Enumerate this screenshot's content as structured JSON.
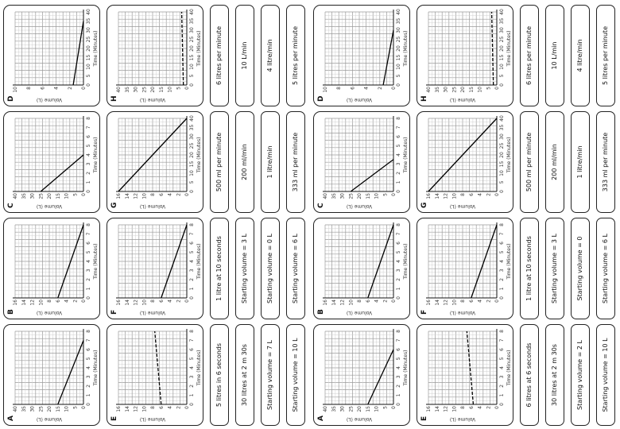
{
  "sheets": [
    {
      "graphs": [
        {
          "id": "A",
          "ymax": 40,
          "xmax": 8,
          "xlabel": "Time (Minutes)",
          "ylabel": "Volume (L)",
          "line": [
            [
              0,
              15
            ],
            [
              7,
              0
            ]
          ],
          "dashed": false
        },
        {
          "id": "B",
          "ymax": 16,
          "xmax": 8,
          "xlabel": "Time (Minutes)",
          "ylabel": "Volume (L)",
          "line": [
            [
              0,
              6
            ],
            [
              8,
              0
            ]
          ],
          "dashed": false
        },
        {
          "id": "C",
          "ymax": 40,
          "xmax": 8,
          "xlabel": "Time (Minutes)",
          "ylabel": "Volume (L)",
          "line": [
            [
              0,
              25
            ],
            [
              4,
              0
            ]
          ],
          "dashed": false
        },
        {
          "id": "D",
          "ymax": 10,
          "xmax": 40,
          "xlabel": "Time (Minutes)",
          "ylabel": "Volume (L)",
          "line": [
            [
              0,
              1.5
            ],
            [
              35,
              0
            ]
          ],
          "dashed": false
        },
        {
          "id": "E",
          "ymax": 16,
          "xmax": 8,
          "xlabel": "Time (Minutes)",
          "ylabel": "Volume (L)",
          "line": [
            [
              0,
              6
            ],
            [
              8,
              7.5
            ]
          ],
          "dashed": true
        },
        {
          "id": "F",
          "ymax": 16,
          "xmax": 8,
          "xlabel": "Time (Minutes)",
          "ylabel": "Volume (L)",
          "line": [
            [
              0,
              6
            ],
            [
              8,
              0
            ]
          ],
          "dashed": false
        },
        {
          "id": "G",
          "ymax": 16,
          "xmax": 40,
          "xlabel": "Time (Minutes)",
          "ylabel": "Volume (L)",
          "line": [
            [
              0,
              16
            ],
            [
              40,
              0
            ]
          ],
          "dashed": false
        },
        {
          "id": "H",
          "ymax": 40,
          "xmax": 40,
          "xlabel": "Time (Minutes)",
          "ylabel": "Volume (L)",
          "line": [
            [
              0,
              2
            ],
            [
              40,
              3
            ]
          ],
          "dashed": true
        }
      ],
      "labels": [
        [
          "5 litres in 6 seconds",
          "30 litres at 2 m 30s",
          "Starting volume = 7 L",
          "Starting volume = 10 L"
        ],
        [
          "1 litre at 10 seconds",
          "Starting volume = 3 L",
          "Starting volume = 0 L",
          "Starting volume = 6 L"
        ],
        [
          "500 ml per minute",
          "200 ml/min",
          "1 litre/min",
          "333 ml per minute"
        ],
        [
          "6 litres per minute",
          "10 L/min",
          "4 litre/min",
          "5 litres per minute"
        ]
      ]
    },
    {
      "graphs": [
        {
          "id": "A",
          "ymax": 40,
          "xmax": 8,
          "xlabel": "Time (Minutes)",
          "ylabel": "Volume (L)",
          "line": [
            [
              0,
              15
            ],
            [
              6,
              0
            ]
          ],
          "dashed": false
        },
        {
          "id": "B",
          "ymax": 16,
          "xmax": 8,
          "xlabel": "Time (Minutes)",
          "ylabel": "Volume (L)",
          "line": [
            [
              0,
              6
            ],
            [
              8,
              0
            ]
          ],
          "dashed": false
        },
        {
          "id": "C",
          "ymax": 40,
          "xmax": 8,
          "xlabel": "Time (Minutes)",
          "ylabel": "Volume (L)",
          "line": [
            [
              0,
              25
            ],
            [
              3.5,
              0
            ]
          ],
          "dashed": false
        },
        {
          "id": "D",
          "ymax": 10,
          "xmax": 40,
          "xlabel": "Time (Minutes)",
          "ylabel": "Volume (L)",
          "line": [
            [
              0,
              1.5
            ],
            [
              30,
              0
            ]
          ],
          "dashed": false
        },
        {
          "id": "E",
          "ymax": 16,
          "xmax": 8,
          "xlabel": "Time (Minutes)",
          "ylabel": "Volume (L)",
          "line": [
            [
              0,
              5.5
            ],
            [
              8,
              7
            ]
          ],
          "dashed": true
        },
        {
          "id": "F",
          "ymax": 16,
          "xmax": 8,
          "xlabel": "Time (Minutes)",
          "ylabel": "Volume (L)",
          "line": [
            [
              0,
              6
            ],
            [
              8,
              0
            ]
          ],
          "dashed": false
        },
        {
          "id": "G",
          "ymax": 16,
          "xmax": 40,
          "xlabel": "Time (Minutes)",
          "ylabel": "Volume (L)",
          "line": [
            [
              0,
              16
            ],
            [
              40,
              0
            ]
          ],
          "dashed": false
        },
        {
          "id": "H",
          "ymax": 40,
          "xmax": 40,
          "xlabel": "Time (Minutes)",
          "ylabel": "Volume (L)",
          "line": [
            [
              0,
              2
            ],
            [
              40,
              3
            ]
          ],
          "dashed": true
        }
      ],
      "labels": [
        [
          "6 litres at 6 seconds",
          "30 litres at 2 m 30s",
          "Starting volume = 2 L",
          "Starting volume = 10 L"
        ],
        [
          "1 litre at 10 seconds",
          "Starting volume = 3 L",
          "Starting volume = 0",
          "Starting volume = 6 L"
        ],
        [
          "500 ml per minute",
          "200 ml/min",
          "1 litre/min",
          "333 ml per minute"
        ],
        [
          "6 litres per minute",
          "10 L/min",
          "4 litre/min",
          "5 litres per minute"
        ]
      ]
    }
  ]
}
